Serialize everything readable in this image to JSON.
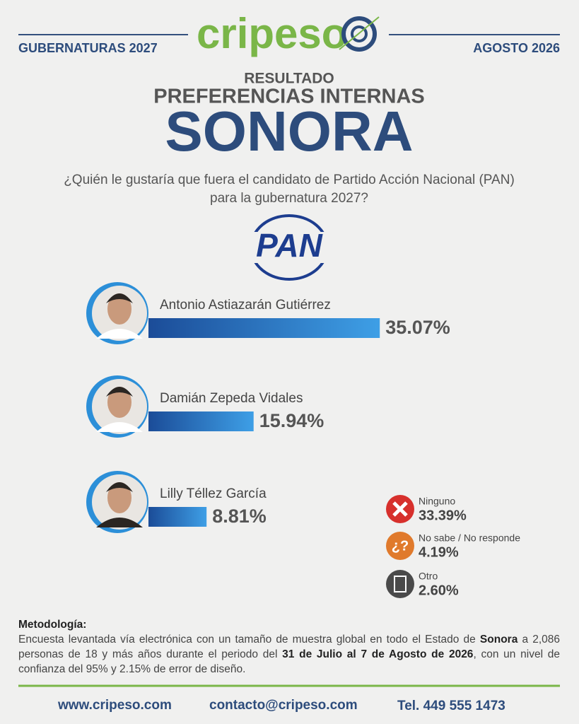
{
  "header": {
    "logo": "cripeso",
    "left": "GUBERNATURAS 2027",
    "right": "AGOSTO 2026",
    "kicker": "RESULTADO",
    "subtitle": "PREFERENCIAS INTERNAS",
    "title": "SONORA",
    "question": [
      "¿Quién le gustaría que fuera el candidato de Partido Acción Nacional (PAN)",
      "para la gubernatura 2027?"
    ],
    "party": "PAN"
  },
  "chart_data": {
    "type": "bar",
    "orientation": "horizontal",
    "color": "#1f5fb0",
    "categories": [
      "Antonio Astiazarán Gutiérrez",
      "Damián Zepeda Vidales",
      "Lilly Téllez García"
    ],
    "values": [
      35.07,
      15.94,
      8.81
    ],
    "value_labels": [
      "35.07%",
      "15.94%",
      "8.81%"
    ]
  },
  "other_answers": [
    {
      "label": "Ninguno",
      "value": "33.39%"
    },
    {
      "label": "No sabe / No responde",
      "value": "4.19%",
      "icon": "¿?"
    },
    {
      "label": "Otro",
      "value": "2.60%"
    }
  ],
  "methodology": {
    "heading": "Metodología:",
    "parts": [
      "Encuesta levantada vía electrónica con un tamaño de muestra global en todo el Estado de ",
      "Sonora",
      " a 2,086 personas de 18 y más años durante el periodo del ",
      "31 de Julio al 7 de Agosto de 2026",
      ", con un nivel de confianza del 95% y 2.15% de error de diseño."
    ]
  },
  "footer": {
    "web": "www.cripeso.com",
    "email": "contacto@cripeso.com",
    "phone": "Tel. 449 555 1473"
  }
}
